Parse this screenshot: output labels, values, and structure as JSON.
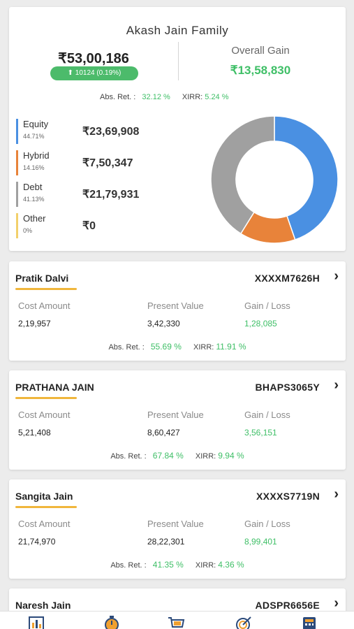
{
  "summary": {
    "family_title": "Akash Jain Family",
    "total_value": "₹53,00,186",
    "day_gain": "⬆ 10124  (0.19%)",
    "overall_gain_label": "Overall Gain",
    "overall_gain_value": "₹13,58,830",
    "abs_ret_label": "Abs. Ret. :",
    "abs_ret_value": "32.12 %",
    "xirr_label": "XIRR:",
    "xirr_value": "5.24 %"
  },
  "allocation": [
    {
      "name": "Equity",
      "pct": "44.71%",
      "amount": "₹23,69,908",
      "color": "#4a90e2"
    },
    {
      "name": "Hybrid",
      "pct": "14.16%",
      "amount": "₹7,50,347",
      "color": "#e8833a"
    },
    {
      "name": "Debt",
      "pct": "41.13%",
      "amount": "₹21,79,931",
      "color": "#a0a0a0"
    },
    {
      "name": "Other",
      "pct": "0%",
      "amount": "₹0",
      "color": "#f2d06b"
    }
  ],
  "chart_data": {
    "type": "pie",
    "variant": "donut",
    "categories": [
      "Equity",
      "Hybrid",
      "Debt",
      "Other"
    ],
    "values": [
      44.71,
      14.16,
      41.13,
      0
    ],
    "colors": [
      "#4a90e2",
      "#e8833a",
      "#a0a0a0",
      "#f2d06b"
    ]
  },
  "labels": {
    "cost_amount": "Cost Amount",
    "present_value": "Present Value",
    "gain_loss": "Gain / Loss",
    "abs_ret": "Abs. Ret. :",
    "xirr": "XIRR:"
  },
  "members": [
    {
      "name": "Pratik Dalvi",
      "pan": "XXXXM7626H",
      "cost": "2,19,957",
      "present": "3,42,330",
      "gain": "1,28,085",
      "abs_ret": "55.69 %",
      "xirr": "11.91 %"
    },
    {
      "name": "PRATHANA JAIN",
      "pan": "BHAPS3065Y",
      "cost": "5,21,408",
      "present": "8,60,427",
      "gain": "3,56,151",
      "abs_ret": "67.84 %",
      "xirr": "9.94 %"
    },
    {
      "name": "Sangita Jain",
      "pan": "XXXXS7719N",
      "cost": "21,74,970",
      "present": "28,22,301",
      "gain": "8,99,401",
      "abs_ret": "41.35 %",
      "xirr": "4.36 %"
    },
    {
      "name": "Naresh Jain",
      "pan": "ADSPR6656E"
    }
  ],
  "nav": {
    "icons": [
      "portfolio-icon",
      "stopwatch-icon",
      "cart-icon",
      "target-icon",
      "calculator-icon"
    ],
    "colors": {
      "blue": "#2c4a7a",
      "orange": "#f0a030"
    }
  }
}
